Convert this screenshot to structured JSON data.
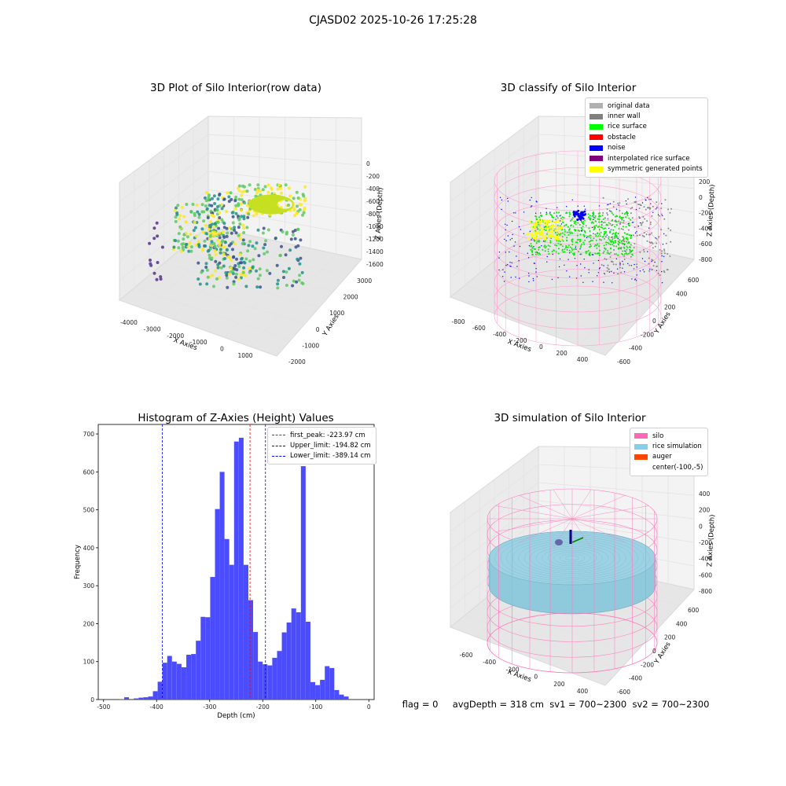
{
  "figure": {
    "suptitle": "CJASD02 2025-10-26 17:25:28",
    "status_line": "flag = 0     avgDepth = 318 cm  sv1 = 700~2300  sv2 = 700~2300"
  },
  "panel_raw": {
    "title": "3D Plot of Silo Interior(row data)",
    "xlabel": "X Axies",
    "ylabel": "Y Axies",
    "zlabel": "Z Axies (Depth)",
    "x_ticks": [
      "-4000",
      "-3000",
      "-2000",
      "-1000",
      "0",
      "1000"
    ],
    "y_ticks": [
      "-2000",
      "-1000",
      "0",
      "1000",
      "2000",
      "3000"
    ],
    "z_ticks": [
      "0",
      "-200",
      "-400",
      "-600",
      "-800",
      "-1000",
      "-1200",
      "-1400",
      "-1600"
    ]
  },
  "panel_classify": {
    "title": "3D classify of Silo Interior",
    "xlabel": "X Axies",
    "ylabel": "Y Axies",
    "zlabel": "Z Axies (Depth)",
    "x_ticks": [
      "-800",
      "-600",
      "-400",
      "-200",
      "0",
      "200",
      "400"
    ],
    "y_ticks": [
      "-600",
      "-400",
      "-200",
      "0",
      "200",
      "400",
      "600"
    ],
    "z_ticks": [
      "200",
      "0",
      "-200",
      "-400",
      "-600",
      "-800"
    ],
    "legend": [
      {
        "label": "original data",
        "color": "#b0b0b0"
      },
      {
        "label": "inner wall",
        "color": "#808080"
      },
      {
        "label": "rice surface",
        "color": "#00ff00"
      },
      {
        "label": "obstacle",
        "color": "#ff0000"
      },
      {
        "label": "noise",
        "color": "#0000ff"
      },
      {
        "label": "interpolated rice surface",
        "color": "#800080"
      },
      {
        "label": "symmetric generated points",
        "color": "#ffff00"
      }
    ]
  },
  "panel_sim": {
    "title": "3D simulation of Silo Interior",
    "xlabel": "X Axies",
    "ylabel": "Y Axies",
    "zlabel": "Z Axies (Depth)",
    "x_ticks": [
      "-600",
      "-400",
      "-200",
      "0",
      "200",
      "400"
    ],
    "y_ticks": [
      "-600",
      "-400",
      "-200",
      "0",
      "200",
      "400",
      "600"
    ],
    "z_ticks": [
      "400",
      "200",
      "0",
      "-200",
      "-400",
      "-600",
      "-800"
    ],
    "legend": [
      {
        "label": "silo",
        "color": "#ff69b4"
      },
      {
        "label": "rice simulation",
        "color": "#87ceeb"
      },
      {
        "label": "auger",
        "color": "#ff4500"
      },
      {
        "label": "center(-100,-5)",
        "color": "#ffffff"
      }
    ]
  },
  "chart_data": {
    "type": "bar",
    "title": "Histogram of Z-Axies (Height) Values",
    "xlabel": "Depth (cm)",
    "ylabel": "Frequency",
    "xlim": [
      -510,
      10
    ],
    "ylim": [
      0,
      725
    ],
    "x_ticks": [
      -500,
      -400,
      -300,
      -200,
      -100,
      0
    ],
    "y_ticks": [
      0,
      100,
      200,
      300,
      400,
      500,
      600,
      700
    ],
    "bar_color": "#4c4cff",
    "bin_width": 8.9,
    "bins": [
      {
        "x0": -470,
        "count": 1
      },
      {
        "x0": -461,
        "count": 6
      },
      {
        "x0": -452,
        "count": 0
      },
      {
        "x0": -443,
        "count": 3
      },
      {
        "x0": -434,
        "count": 5
      },
      {
        "x0": -425,
        "count": 6
      },
      {
        "x0": -416,
        "count": 8
      },
      {
        "x0": -407,
        "count": 22
      },
      {
        "x0": -398,
        "count": 47
      },
      {
        "x0": -389,
        "count": 97
      },
      {
        "x0": -380,
        "count": 115
      },
      {
        "x0": -371,
        "count": 100
      },
      {
        "x0": -362,
        "count": 94
      },
      {
        "x0": -353,
        "count": 85
      },
      {
        "x0": -344,
        "count": 118
      },
      {
        "x0": -335,
        "count": 120
      },
      {
        "x0": -326,
        "count": 155
      },
      {
        "x0": -317,
        "count": 218
      },
      {
        "x0": -308,
        "count": 217
      },
      {
        "x0": -299,
        "count": 323
      },
      {
        "x0": -290,
        "count": 502
      },
      {
        "x0": -281,
        "count": 600
      },
      {
        "x0": -272,
        "count": 423
      },
      {
        "x0": -263,
        "count": 355
      },
      {
        "x0": -254,
        "count": 680
      },
      {
        "x0": -245,
        "count": 690
      },
      {
        "x0": -236,
        "count": 355
      },
      {
        "x0": -227,
        "count": 262
      },
      {
        "x0": -218,
        "count": 178
      },
      {
        "x0": -209,
        "count": 100
      },
      {
        "x0": -200,
        "count": 93
      },
      {
        "x0": -191,
        "count": 90
      },
      {
        "x0": -182,
        "count": 110
      },
      {
        "x0": -173,
        "count": 128
      },
      {
        "x0": -164,
        "count": 177
      },
      {
        "x0": -155,
        "count": 203
      },
      {
        "x0": -146,
        "count": 240
      },
      {
        "x0": -137,
        "count": 230
      },
      {
        "x0": -128,
        "count": 615
      },
      {
        "x0": -119,
        "count": 205
      },
      {
        "x0": -110,
        "count": 46
      },
      {
        "x0": -101,
        "count": 38
      },
      {
        "x0": -92,
        "count": 52
      },
      {
        "x0": -83,
        "count": 88
      },
      {
        "x0": -74,
        "count": 83
      },
      {
        "x0": -65,
        "count": 25
      },
      {
        "x0": -56,
        "count": 13
      },
      {
        "x0": -47,
        "count": 8
      }
    ],
    "vlines": [
      {
        "label": "first_peak: -223.97 cm",
        "x": -223.97,
        "color": "#ff0000"
      },
      {
        "label": "Upper_limit: -194.82 cm",
        "x": -194.82,
        "color": "#0000ff"
      },
      {
        "label": "Lower_limit: -389.14 cm",
        "x": -389.14,
        "color": "#0000ff"
      }
    ]
  }
}
